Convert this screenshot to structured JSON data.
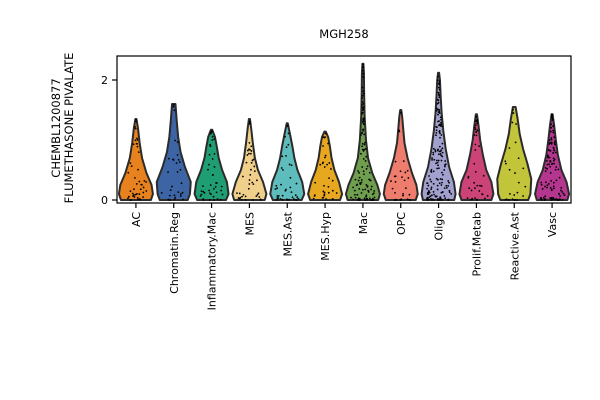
{
  "chart_data": {
    "type": "violin",
    "title": "MGH258",
    "ylabel_lines": [
      "CHEMBL1200877",
      "FLUMETHASONE PIVALATE"
    ],
    "xlabel": "",
    "ylim": [
      -0.05,
      2.4
    ],
    "yticks": [
      0,
      2
    ],
    "grid": false,
    "legend": "none",
    "categories": [
      "AC",
      "Chromatin.Reg",
      "Inflammatory.Mac",
      "MES",
      "MES.Ast",
      "MES.Hyp",
      "Mac",
      "OPC",
      "Oligo",
      "Prolif.Metab",
      "Reactive.Ast",
      "Vasc"
    ],
    "colors": [
      "#e8821e",
      "#3d65a5",
      "#1f9e73",
      "#f1d08b",
      "#5ebcbd",
      "#e7a71f",
      "#6e9e4e",
      "#ee7d6d",
      "#a1a0cf",
      "#cc4377",
      "#c2c43a",
      "#b5368f"
    ],
    "violins": [
      {
        "max": 1.35,
        "points": 45,
        "profile": [
          [
            0.0,
            0.88
          ],
          [
            0.1,
            1.0
          ],
          [
            0.25,
            0.92
          ],
          [
            0.45,
            0.62
          ],
          [
            0.7,
            0.36
          ],
          [
            0.95,
            0.22
          ],
          [
            1.2,
            0.12
          ],
          [
            1.35,
            0.03
          ]
        ]
      },
      {
        "max": 1.6,
        "points": 30,
        "profile": [
          [
            0.0,
            0.82
          ],
          [
            0.1,
            0.95
          ],
          [
            0.3,
            1.0
          ],
          [
            0.55,
            0.66
          ],
          [
            0.8,
            0.4
          ],
          [
            1.05,
            0.26
          ],
          [
            1.3,
            0.18
          ],
          [
            1.45,
            0.14
          ],
          [
            1.6,
            0.1
          ]
        ]
      },
      {
        "max": 1.17,
        "points": 45,
        "profile": [
          [
            0.0,
            0.85
          ],
          [
            0.1,
            1.0
          ],
          [
            0.3,
            0.9
          ],
          [
            0.5,
            0.62
          ],
          [
            0.7,
            0.42
          ],
          [
            0.9,
            0.3
          ],
          [
            1.05,
            0.2
          ],
          [
            1.17,
            0.04
          ]
        ]
      },
      {
        "max": 1.35,
        "points": 45,
        "profile": [
          [
            0.0,
            0.9
          ],
          [
            0.1,
            1.0
          ],
          [
            0.3,
            0.8
          ],
          [
            0.5,
            0.5
          ],
          [
            0.7,
            0.32
          ],
          [
            0.95,
            0.2
          ],
          [
            1.2,
            0.1
          ],
          [
            1.35,
            0.03
          ]
        ]
      },
      {
        "max": 1.28,
        "points": 40,
        "profile": [
          [
            0.0,
            0.85
          ],
          [
            0.1,
            1.0
          ],
          [
            0.3,
            0.88
          ],
          [
            0.5,
            0.6
          ],
          [
            0.7,
            0.42
          ],
          [
            0.9,
            0.3
          ],
          [
            1.1,
            0.16
          ],
          [
            1.28,
            0.03
          ]
        ]
      },
      {
        "max": 1.14,
        "points": 35,
        "profile": [
          [
            0.0,
            0.88
          ],
          [
            0.1,
            1.0
          ],
          [
            0.3,
            0.82
          ],
          [
            0.5,
            0.55
          ],
          [
            0.7,
            0.38
          ],
          [
            0.9,
            0.28
          ],
          [
            1.05,
            0.18
          ],
          [
            1.14,
            0.04
          ]
        ]
      },
      {
        "max": 2.27,
        "points": 110,
        "profile": [
          [
            0.0,
            0.9
          ],
          [
            0.1,
            1.0
          ],
          [
            0.25,
            0.85
          ],
          [
            0.45,
            0.55
          ],
          [
            0.7,
            0.3
          ],
          [
            1.0,
            0.18
          ],
          [
            1.4,
            0.1
          ],
          [
            1.8,
            0.07
          ],
          [
            2.1,
            0.06
          ],
          [
            2.27,
            0.03
          ]
        ]
      },
      {
        "max": 1.5,
        "points": 30,
        "profile": [
          [
            0.0,
            0.88
          ],
          [
            0.1,
            1.0
          ],
          [
            0.25,
            0.92
          ],
          [
            0.45,
            0.66
          ],
          [
            0.7,
            0.4
          ],
          [
            0.95,
            0.22
          ],
          [
            1.2,
            0.14
          ],
          [
            1.4,
            0.08
          ],
          [
            1.5,
            0.03
          ]
        ]
      },
      {
        "max": 2.12,
        "points": 160,
        "profile": [
          [
            0.0,
            0.92
          ],
          [
            0.1,
            1.0
          ],
          [
            0.3,
            0.9
          ],
          [
            0.55,
            0.62
          ],
          [
            0.85,
            0.42
          ],
          [
            1.15,
            0.28
          ],
          [
            1.45,
            0.18
          ],
          [
            1.75,
            0.12
          ],
          [
            2.0,
            0.08
          ],
          [
            2.12,
            0.03
          ]
        ]
      },
      {
        "max": 1.43,
        "points": 40,
        "profile": [
          [
            0.0,
            0.88
          ],
          [
            0.1,
            1.0
          ],
          [
            0.3,
            0.88
          ],
          [
            0.5,
            0.58
          ],
          [
            0.75,
            0.38
          ],
          [
            1.0,
            0.22
          ],
          [
            1.25,
            0.12
          ],
          [
            1.43,
            0.03
          ]
        ]
      },
      {
        "max": 1.55,
        "points": 25,
        "profile": [
          [
            0.0,
            0.82
          ],
          [
            0.1,
            0.95
          ],
          [
            0.35,
            1.0
          ],
          [
            0.6,
            0.78
          ],
          [
            0.85,
            0.52
          ],
          [
            1.1,
            0.32
          ],
          [
            1.35,
            0.2
          ],
          [
            1.55,
            0.08
          ]
        ]
      },
      {
        "max": 1.43,
        "points": 110,
        "profile": [
          [
            0.0,
            0.9
          ],
          [
            0.1,
            1.0
          ],
          [
            0.3,
            0.85
          ],
          [
            0.5,
            0.55
          ],
          [
            0.75,
            0.34
          ],
          [
            1.0,
            0.22
          ],
          [
            1.25,
            0.12
          ],
          [
            1.43,
            0.03
          ]
        ]
      }
    ]
  }
}
